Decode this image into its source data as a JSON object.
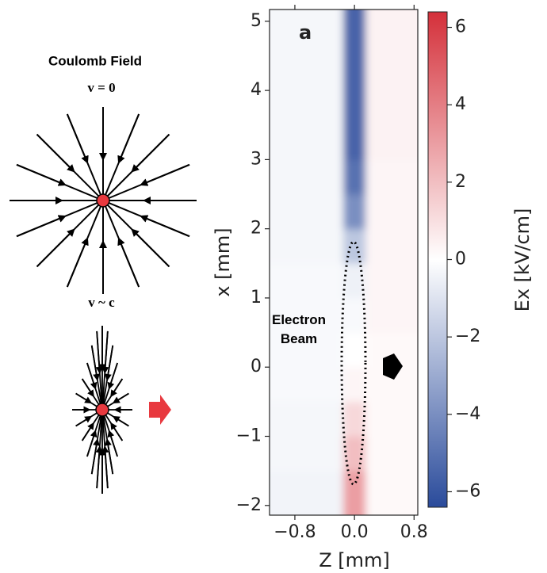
{
  "diagram": {
    "title": "Coulomb Field",
    "static_label": "v = 0",
    "moving_label": "v ~ c"
  },
  "chart_data": {
    "type": "heatmap",
    "panel_label": "a",
    "annotation": "Electron Beam",
    "xlabel": "Z [mm]",
    "ylabel": "x [mm]",
    "colorbar_label": "Ex [kV/cm]",
    "xlim": [
      -1.14,
      0.85
    ],
    "xticks": [
      {
        "value": -0.8,
        "label": "−0.8"
      },
      {
        "value": 0,
        "label": "0.0"
      },
      0.8
    ],
    "ylim": [
      -2.14,
      5.17
    ],
    "yticks": [
      {
        "value": -2,
        "label": "−2"
      },
      {
        "value": -1,
        "label": "−1"
      },
      0,
      1,
      2,
      3,
      4,
      5
    ],
    "clim": [
      -6.4,
      6.4
    ],
    "cticks": [
      {
        "value": -6,
        "label": "−6"
      },
      {
        "value": -4,
        "label": "−4"
      },
      {
        "value": -2,
        "label": "−2"
      },
      0,
      2,
      4,
      6
    ],
    "colormap": [
      "#2a4b9b",
      "#ffffff",
      "#d4303a"
    ],
    "z_bins": [
      -1.14,
      -0.15,
      0.15,
      0.85
    ],
    "x_bins": [
      -2.14,
      -1.5,
      -1,
      -0.5,
      0,
      0.5,
      1,
      1.5,
      2,
      2.5,
      3,
      3.5,
      4,
      4.5,
      5.17
    ],
    "values": [
      [
        -0.4,
        3,
        0.2
      ],
      [
        -0.3,
        2,
        0.2
      ],
      [
        -0.3,
        1.2,
        0.2
      ],
      [
        -0.2,
        0.3,
        0.2
      ],
      [
        -0.2,
        0,
        0.2
      ],
      [
        -0.2,
        -0.2,
        0.3
      ],
      [
        -0.2,
        -0.5,
        0.3
      ],
      [
        -0.3,
        -2,
        0.3
      ],
      [
        -0.3,
        -4,
        0.3
      ],
      [
        -0.3,
        -5,
        0.3
      ],
      [
        -0.3,
        -5.5,
        0.4
      ],
      [
        -0.3,
        -5.5,
        0.4
      ],
      [
        -0.3,
        -5.5,
        0.4
      ],
      [
        -0.3,
        -5.5,
        0.4
      ]
    ]
  }
}
